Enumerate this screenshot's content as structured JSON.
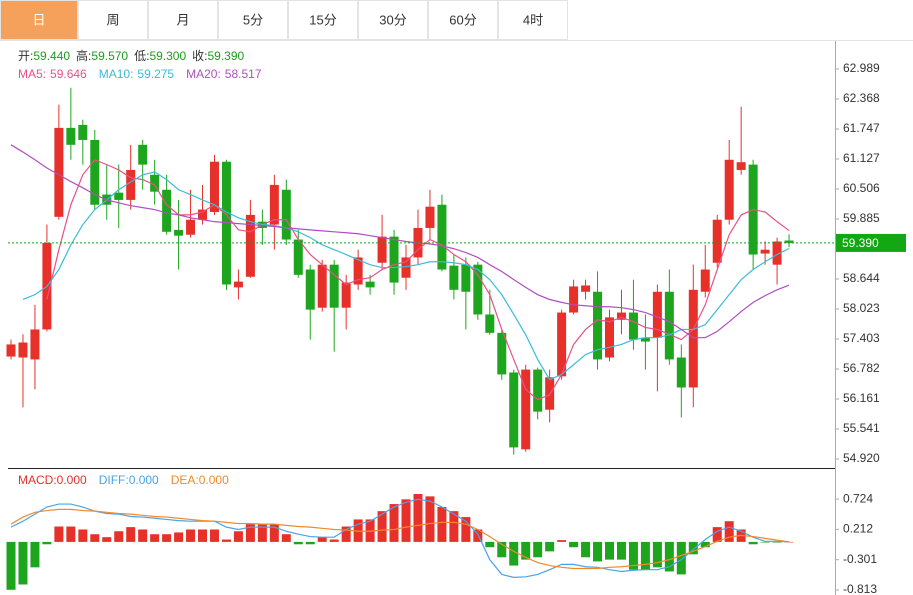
{
  "tabs": [
    {
      "label": "日",
      "active": true
    },
    {
      "label": "周",
      "active": false
    },
    {
      "label": "月",
      "active": false
    },
    {
      "label": "5分",
      "active": false
    },
    {
      "label": "15分",
      "active": false
    },
    {
      "label": "30分",
      "active": false
    },
    {
      "label": "60分",
      "active": false
    },
    {
      "label": "4时",
      "active": false
    }
  ],
  "chart_data": [
    {
      "type": "candlestick",
      "header": [
        {
          "name": "开:",
          "value": "59.440"
        },
        {
          "name": "高:",
          "value": "59.570"
        },
        {
          "name": "低:",
          "value": "59.300"
        },
        {
          "name": "收:",
          "value": "59.390"
        }
      ],
      "header_value_color": "#1a9e1a",
      "up_color": "#e8302a",
      "down_color": "#1ea51e",
      "open": [
        57.04,
        57.02,
        56.98,
        57.6,
        59.93,
        61.77,
        61.83,
        61.52,
        60.39,
        60.43,
        60.28,
        61.42,
        60.8,
        60.49,
        59.66,
        59.56,
        59.87,
        60.03,
        61.07,
        58.47,
        58.69,
        59.83,
        59.77,
        60.49,
        59.46,
        58.84,
        58.05,
        58.94,
        58.05,
        58.53,
        58.59,
        58.98,
        59.52,
        58.67,
        59.09,
        59.7,
        60.18,
        58.92,
        58.94,
        58.94,
        57.91,
        57.53,
        56.71,
        55.12,
        56.77,
        55.94,
        56.63,
        57.95,
        58.38,
        58.38,
        57.02,
        57.8,
        57.95,
        57.43,
        57.43,
        58.38,
        57.02,
        56.4,
        58.38,
        58.98,
        59.87,
        60.9,
        61.01,
        59.17,
        58.94,
        59.44
      ],
      "high": [
        57.39,
        57.5,
        58.11,
        59.77,
        62.25,
        62.6,
        61.94,
        61.73,
        61.01,
        61.01,
        61.42,
        61.52,
        61.11,
        60.8,
        60.28,
        60.49,
        60.59,
        61.21,
        61.11,
        58.84,
        60.28,
        60.08,
        60.8,
        60.7,
        59.66,
        58.94,
        59.04,
        59.04,
        58.73,
        59.25,
        58.73,
        59.97,
        59.66,
        59.35,
        60.08,
        60.49,
        60.39,
        59.15,
        59.09,
        59.0,
        58.42,
        57.6,
        56.77,
        56.87,
        56.81,
        56.77,
        58.01,
        58.63,
        58.63,
        58.8,
        58.01,
        58.42,
        58.63,
        57.91,
        58.53,
        58.84,
        57.29,
        58.94,
        59.35,
        59.97,
        61.52,
        62.21,
        61.11,
        59.42,
        59.5,
        59.57
      ],
      "low": [
        56.98,
        55.99,
        56.36,
        57.56,
        59.87,
        61.11,
        61.01,
        60.08,
        59.87,
        59.7,
        60.08,
        60.49,
        60.18,
        59.56,
        58.84,
        59.5,
        59.77,
        59.97,
        58.42,
        58.22,
        58.67,
        59.35,
        59.25,
        59.35,
        58.67,
        57.39,
        57.97,
        57.14,
        57.6,
        58.42,
        58.32,
        58.84,
        58.32,
        58.42,
        58.94,
        59.46,
        58.8,
        58.22,
        57.6,
        57.8,
        57.49,
        56.56,
        55.01,
        55.07,
        55.74,
        55.68,
        56.56,
        57.91,
        58.22,
        56.77,
        56.94,
        57.5,
        57.18,
        56.77,
        56.32,
        56.87,
        55.78,
        55.99,
        58.26,
        58.88,
        59.77,
        60.8,
        58.84,
        58.94,
        58.53,
        59.3
      ],
      "close": [
        57.29,
        57.33,
        57.6,
        59.39,
        61.77,
        61.42,
        61.52,
        60.18,
        60.18,
        60.28,
        60.9,
        61.01,
        60.45,
        59.62,
        59.54,
        59.87,
        60.08,
        61.07,
        58.53,
        58.59,
        59.97,
        59.7,
        60.59,
        59.46,
        58.73,
        58.01,
        58.94,
        58.05,
        58.57,
        59.09,
        58.47,
        59.52,
        58.57,
        59.09,
        59.7,
        60.14,
        58.84,
        58.42,
        58.38,
        57.91,
        57.53,
        56.67,
        55.16,
        56.77,
        55.9,
        56.61,
        57.95,
        58.49,
        58.51,
        56.98,
        57.85,
        57.95,
        57.39,
        57.35,
        58.38,
        56.98,
        56.4,
        58.42,
        58.84,
        59.87,
        61.11,
        61.06,
        59.15,
        59.25,
        59.42,
        59.39
      ],
      "series": [
        {
          "name": "MA5:",
          "current": "59.646",
          "color": "#e9508a",
          "values": [
            null,
            null,
            null,
            58.22,
            59.25,
            60.18,
            60.8,
            61.11,
            61.01,
            60.9,
            60.74,
            60.7,
            60.59,
            60.18,
            59.97,
            59.97,
            60.03,
            60.18,
            59.97,
            59.66,
            59.62,
            59.77,
            59.87,
            59.87,
            59.46,
            59.15,
            58.94,
            58.73,
            58.53,
            58.63,
            58.67,
            58.84,
            58.94,
            59.0,
            59.25,
            59.46,
            59.35,
            59.15,
            59.0,
            58.73,
            58.32,
            57.6,
            56.98,
            56.36,
            56.15,
            56.25,
            56.67,
            57.29,
            57.6,
            57.8,
            57.76,
            57.85,
            57.76,
            57.64,
            57.6,
            57.5,
            57.39,
            57.6,
            58.11,
            58.84,
            59.56,
            59.97,
            60.08,
            60.03,
            59.83,
            59.646
          ]
        },
        {
          "name": "MA10:",
          "current": "59.275",
          "color": "#3bbcd6",
          "values": [
            null,
            58.22,
            58.32,
            58.49,
            58.84,
            59.35,
            59.77,
            60.08,
            60.28,
            60.49,
            60.65,
            60.8,
            60.86,
            60.7,
            60.49,
            60.39,
            60.28,
            60.18,
            60.03,
            59.91,
            59.83,
            59.77,
            59.75,
            59.7,
            59.62,
            59.5,
            59.35,
            59.25,
            59.15,
            59.04,
            58.94,
            58.88,
            58.88,
            58.9,
            58.94,
            59.0,
            59.0,
            58.98,
            58.94,
            58.84,
            58.63,
            58.32,
            57.91,
            57.49,
            56.98,
            56.56,
            56.67,
            56.87,
            57.08,
            57.18,
            57.23,
            57.29,
            57.39,
            57.43,
            57.43,
            57.49,
            57.6,
            57.6,
            57.7,
            58.01,
            58.32,
            58.63,
            58.84,
            59.0,
            59.15,
            59.275
          ]
        },
        {
          "name": "MA20:",
          "current": "58.517",
          "color": "#b04fc0",
          "values": [
            61.42,
            61.27,
            61.11,
            60.94,
            60.8,
            60.66,
            60.53,
            60.39,
            60.28,
            60.22,
            60.16,
            60.12,
            60.08,
            60.01,
            59.97,
            59.91,
            59.87,
            59.83,
            59.81,
            59.79,
            59.77,
            59.75,
            59.73,
            59.7,
            59.68,
            59.66,
            59.64,
            59.62,
            59.6,
            59.58,
            59.54,
            59.5,
            59.46,
            59.42,
            59.39,
            59.37,
            59.33,
            59.27,
            59.19,
            59.09,
            58.94,
            58.8,
            58.63,
            58.47,
            58.32,
            58.22,
            58.16,
            58.11,
            58.09,
            58.07,
            58.07,
            58.05,
            58.01,
            57.95,
            57.86,
            57.76,
            57.6,
            57.43,
            57.43,
            57.56,
            57.76,
            57.97,
            58.16,
            58.3,
            58.42,
            58.517
          ]
        }
      ],
      "last_price": {
        "value": 59.39,
        "label": "59.390"
      },
      "last_price_color": "#13a713",
      "ylim": [
        54.734,
        63.588
      ],
      "yticks": [
        62.989,
        62.368,
        61.747,
        61.127,
        60.506,
        59.885,
        58.644,
        58.023,
        57.403,
        56.782,
        56.161,
        55.541,
        {
          "value": 54.92,
          "label": "54.920"
        }
      ]
    },
    {
      "type": "macd",
      "up_color": "#e8302a",
      "down_color": "#1ea51e",
      "series": [
        {
          "name": "MACD:",
          "current": "0.000",
          "color": "#e8302a",
          "values": [
            -0.81,
            -0.72,
            -0.43,
            -0.04,
            0.26,
            0.26,
            0.21,
            0.13,
            0.08,
            0.18,
            0.25,
            0.21,
            0.13,
            0.13,
            0.16,
            0.21,
            0.21,
            0.21,
            0.04,
            0.18,
            0.3,
            0.3,
            0.3,
            0.13,
            -0.04,
            -0.04,
            0.08,
            0.04,
            0.26,
            0.38,
            0.38,
            0.52,
            0.64,
            0.72,
            0.81,
            0.77,
            0.59,
            0.52,
            0.42,
            0.21,
            -0.09,
            -0.26,
            -0.4,
            -0.3,
            -0.26,
            -0.16,
            0.03,
            -0.09,
            -0.26,
            -0.33,
            -0.3,
            -0.3,
            -0.47,
            -0.47,
            -0.43,
            -0.5,
            -0.55,
            -0.21,
            -0.09,
            0.25,
            0.35,
            0.21,
            -0.04,
            -0.01,
            -0.01,
            0
          ]
        },
        {
          "name": "DIFF:",
          "current": "0.000",
          "color": "#4aa3e8",
          "values": [
            0.25,
            0.35,
            0.47,
            0.59,
            0.64,
            0.64,
            0.59,
            0.52,
            0.48,
            0.47,
            0.43,
            0.42,
            0.4,
            0.38,
            0.36,
            0.35,
            0.35,
            0.35,
            0.25,
            0.21,
            0.25,
            0.25,
            0.25,
            0.18,
            0.13,
            0.09,
            0.08,
            0.08,
            0.21,
            0.3,
            0.35,
            0.47,
            0.59,
            0.67,
            0.72,
            0.69,
            0.59,
            0.47,
            0.35,
            0.13,
            -0.3,
            -0.55,
            -0.6,
            -0.59,
            -0.55,
            -0.47,
            -0.38,
            -0.38,
            -0.42,
            -0.43,
            -0.47,
            -0.5,
            -0.48,
            -0.47,
            -0.47,
            -0.42,
            -0.3,
            -0.13,
            0.04,
            0.18,
            0.25,
            0.18,
            0.08,
            0.01,
            0.01,
            0
          ]
        },
        {
          "name": "DEA:",
          "current": "0.000",
          "color": "#ef8a2c",
          "values": [
            0.3,
            0.42,
            0.5,
            0.53,
            0.55,
            0.55,
            0.53,
            0.52,
            0.5,
            0.48,
            0.47,
            0.45,
            0.43,
            0.42,
            0.4,
            0.38,
            0.36,
            0.35,
            0.33,
            0.31,
            0.31,
            0.3,
            0.3,
            0.28,
            0.26,
            0.25,
            0.23,
            0.21,
            0.2,
            0.18,
            0.18,
            0.2,
            0.21,
            0.25,
            0.28,
            0.31,
            0.33,
            0.33,
            0.3,
            0.21,
            0.09,
            -0.04,
            -0.16,
            -0.26,
            -0.35,
            -0.4,
            -0.43,
            -0.45,
            -0.45,
            -0.45,
            -0.43,
            -0.42,
            -0.4,
            -0.38,
            -0.35,
            -0.3,
            -0.23,
            -0.16,
            -0.08,
            0.01,
            0.08,
            0.11,
            0.09,
            0.06,
            0.03,
            0
          ]
        }
      ],
      "ylim": [
        -0.898,
        1.216
      ],
      "yticks": [
        0.724,
        0.212,
        -0.301,
        -0.813
      ]
    }
  ]
}
